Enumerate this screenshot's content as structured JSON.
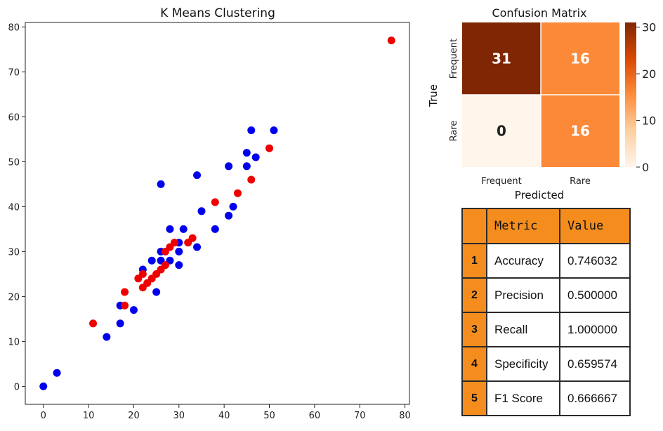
{
  "chart_data": [
    {
      "type": "scatter",
      "title": "K Means Clustering",
      "xlabel": "",
      "ylabel": "",
      "xlim": [
        -4,
        81
      ],
      "ylim": [
        -4,
        81
      ],
      "xticks": [
        0,
        10,
        20,
        30,
        40,
        50,
        60,
        70,
        80
      ],
      "yticks": [
        0,
        10,
        20,
        30,
        40,
        50,
        60,
        70,
        80
      ],
      "series": [
        {
          "name": "cluster-blue",
          "color": "#0000ee",
          "points": [
            [
              0,
              0
            ],
            [
              3,
              3
            ],
            [
              14,
              11
            ],
            [
              17,
              14
            ],
            [
              17,
              18
            ],
            [
              20,
              17
            ],
            [
              22,
              26
            ],
            [
              24,
              28
            ],
            [
              25,
              21
            ],
            [
              26,
              30
            ],
            [
              26,
              28
            ],
            [
              26,
              45
            ],
            [
              28,
              35
            ],
            [
              28,
              28
            ],
            [
              30,
              27
            ],
            [
              30,
              30
            ],
            [
              30,
              32
            ],
            [
              31,
              35
            ],
            [
              34,
              31
            ],
            [
              34,
              47
            ],
            [
              35,
              39
            ],
            [
              38,
              35
            ],
            [
              41,
              38
            ],
            [
              41,
              49
            ],
            [
              42,
              40
            ],
            [
              45,
              49
            ],
            [
              45,
              52
            ],
            [
              46,
              57
            ],
            [
              47,
              51
            ],
            [
              51,
              57
            ]
          ]
        },
        {
          "name": "cluster-red",
          "color": "#ee0000",
          "points": [
            [
              11,
              14
            ],
            [
              18,
              18
            ],
            [
              18,
              21
            ],
            [
              21,
              24
            ],
            [
              22,
              22
            ],
            [
              22,
              25
            ],
            [
              23,
              23
            ],
            [
              24,
              24
            ],
            [
              25,
              25
            ],
            [
              26,
              26
            ],
            [
              27,
              27
            ],
            [
              27,
              30
            ],
            [
              28,
              31
            ],
            [
              29,
              32
            ],
            [
              32,
              32
            ],
            [
              33,
              33
            ],
            [
              38,
              41
            ],
            [
              43,
              43
            ],
            [
              46,
              46
            ],
            [
              50,
              53
            ],
            [
              77,
              77
            ]
          ]
        }
      ]
    },
    {
      "type": "heatmap",
      "title": "Confusion Matrix",
      "xlabel": "Predicted",
      "ylabel": "True",
      "x_categories": [
        "Frequent",
        "Rare"
      ],
      "y_categories": [
        "Frequent",
        "Rare"
      ],
      "values": [
        [
          31,
          16
        ],
        [
          0,
          16
        ]
      ],
      "colorbar": {
        "min": 0,
        "max": 31,
        "ticks": [
          0,
          10,
          20,
          30
        ]
      }
    },
    {
      "type": "table",
      "columns": [
        "",
        "Metric",
        "Value"
      ],
      "rows": [
        [
          "1",
          "Accuracy",
          "0.746032"
        ],
        [
          "2",
          "Precision",
          "0.500000"
        ],
        [
          "3",
          "Recall",
          "1.000000"
        ],
        [
          "4",
          "Specificity",
          "0.659574"
        ],
        [
          "5",
          "F1 Score",
          "0.666667"
        ]
      ]
    }
  ]
}
